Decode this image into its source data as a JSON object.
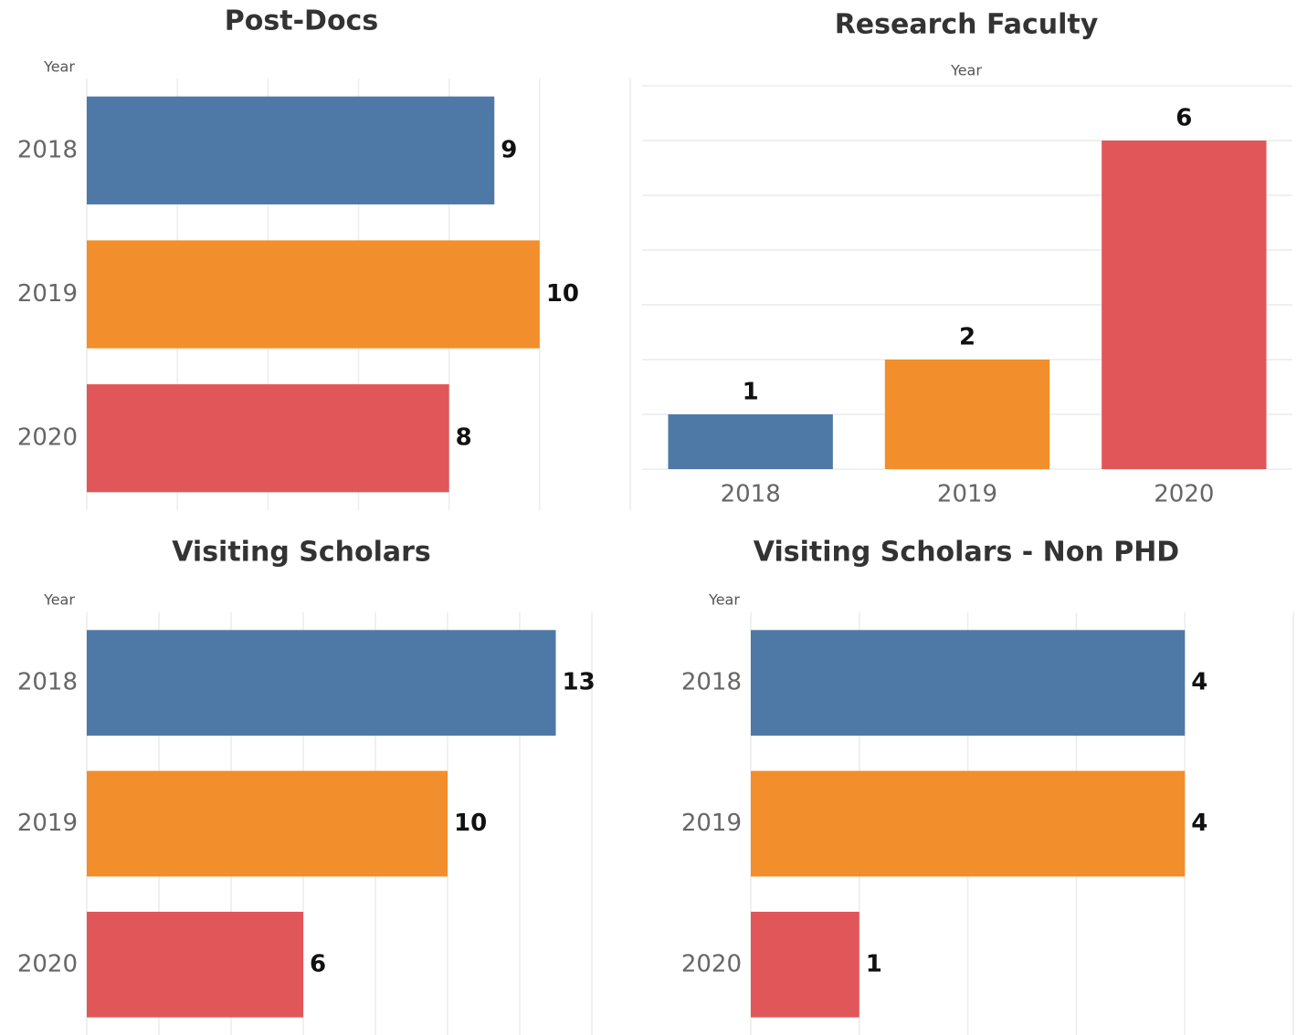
{
  "chart_data": [
    {
      "type": "bar",
      "orientation": "horizontal",
      "title": "Post-Docs",
      "axis_label": "Year",
      "categories": [
        "2018",
        "2019",
        "2020"
      ],
      "values": [
        9,
        10,
        8
      ],
      "colors": [
        "#4e79a7",
        "#f28e2b",
        "#e15759"
      ],
      "xlim": [
        0,
        12
      ],
      "xticks": [
        0,
        2,
        4,
        6,
        8,
        10,
        12
      ],
      "grid": true
    },
    {
      "type": "bar",
      "orientation": "vertical",
      "title": "Research Faculty",
      "axis_label": "Year",
      "categories": [
        "2018",
        "2019",
        "2020"
      ],
      "values": [
        1,
        2,
        6
      ],
      "colors": [
        "#4e79a7",
        "#f28e2b",
        "#e15759"
      ],
      "ylim": [
        0,
        7
      ],
      "yticks": [
        0,
        1,
        2,
        3,
        4,
        5,
        6,
        7
      ],
      "grid": true
    },
    {
      "type": "bar",
      "orientation": "horizontal",
      "title": "Visiting Scholars",
      "axis_label": "Year",
      "categories": [
        "2018",
        "2019",
        "2020"
      ],
      "values": [
        13,
        10,
        6
      ],
      "colors": [
        "#4e79a7",
        "#f28e2b",
        "#e15759"
      ],
      "xlim": [
        0,
        14
      ],
      "xticks": [
        0,
        2,
        4,
        6,
        8,
        10,
        12,
        14
      ],
      "grid": true
    },
    {
      "type": "bar",
      "orientation": "horizontal",
      "title": "Visiting Scholars - Non PHD",
      "axis_label": "Year",
      "categories": [
        "2018",
        "2019",
        "2020"
      ],
      "values": [
        4,
        4,
        1
      ],
      "colors": [
        "#4e79a7",
        "#f28e2b",
        "#e15759"
      ],
      "xlim": [
        0,
        5
      ],
      "xticks": [
        0,
        1,
        2,
        3,
        4,
        5
      ],
      "grid": true
    }
  ]
}
